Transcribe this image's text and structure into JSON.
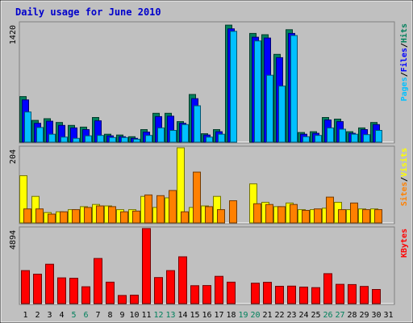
{
  "chart_data": {
    "type": "bar",
    "title": "Daily usage for June 2010",
    "colors": {
      "background": "#c0c0c0",
      "border": "#000000",
      "hits": "#00805c",
      "files": "#0000ff",
      "pages": "#00c0ff",
      "visits": "#ffff00",
      "sites": "#ff8000",
      "kbytes": "#ff0000",
      "weekday_label": "#000000",
      "weekend_label": "#00805c"
    },
    "categories": [
      "1",
      "2",
      "3",
      "4",
      "5",
      "6",
      "7",
      "8",
      "9",
      "10",
      "11",
      "12",
      "13",
      "14",
      "15",
      "16",
      "17",
      "18",
      "19",
      "20",
      "21",
      "22",
      "23",
      "24",
      "25",
      "26",
      "27",
      "28",
      "29",
      "30",
      "31"
    ],
    "weekend_days": [
      "5",
      "6",
      "12",
      "13",
      "19",
      "20",
      "26",
      "27"
    ],
    "panels": [
      {
        "id": "hits",
        "ymax_label": "1420",
        "ylim": [
          0,
          1420
        ],
        "legend": [
          {
            "label": "Pages",
            "color": "#00c0ff"
          },
          {
            "label": "/",
            "color": "#000000"
          },
          {
            "label": "Files",
            "color": "#0000ff"
          },
          {
            "label": "/",
            "color": "#000000"
          },
          {
            "label": "Hits",
            "color": "#00805c"
          }
        ],
        "series": [
          {
            "name": "Hits",
            "color": "#00805c",
            "values": [
              545,
              260,
              280,
              235,
              200,
              180,
              295,
              95,
              85,
              65,
              150,
              345,
              345,
              245,
              570,
              100,
              150,
              1400,
              0,
              1300,
              1285,
              1050,
              1345,
              115,
              125,
              295,
              275,
              125,
              170,
              235,
              0
            ]
          },
          {
            "name": "Files",
            "color": "#0000ff",
            "values": [
              505,
              225,
              250,
              200,
              170,
              150,
              255,
              75,
              65,
              45,
              120,
              305,
              310,
              225,
              520,
              85,
              125,
              1355,
              0,
              1255,
              1245,
              1010,
              1300,
              95,
              105,
              265,
              245,
              105,
              150,
              210,
              0
            ]
          },
          {
            "name": "Pages",
            "color": "#00c0ff",
            "values": [
              360,
              175,
              95,
              60,
              45,
              75,
              80,
              55,
              55,
              35,
              80,
              170,
              140,
              210,
              435,
              60,
              95,
              1325,
              0,
              1210,
              800,
              670,
              1275,
              65,
              80,
              170,
              155,
              95,
              90,
              140,
              0
            ]
          }
        ]
      },
      {
        "id": "visits",
        "ymax_label": "204",
        "ylim": [
          0,
          204
        ],
        "legend": [
          {
            "label": "Sites",
            "color": "#ff8000"
          },
          {
            "label": "/",
            "color": "#000000"
          },
          {
            "label": "Visits",
            "color": "#ffff00"
          }
        ],
        "series": [
          {
            "name": "Visits",
            "color": "#ffff00",
            "values": [
              128,
              72,
              28,
              30,
              36,
              44,
              50,
              46,
              36,
              36,
              72,
              42,
              68,
              204,
              42,
              46,
              72,
              0,
              0,
              106,
              56,
              44,
              54,
              36,
              36,
              40,
              56,
              36,
              38,
              38,
              0
            ]
          },
          {
            "name": "Sites",
            "color": "#ff8000",
            "values": [
              38,
              38,
              24,
              30,
              36,
              42,
              46,
              44,
              30,
              32,
              76,
              74,
              88,
              30,
              138,
              44,
              36,
              60,
              0,
              52,
              50,
              44,
              50,
              34,
              38,
              70,
              36,
              54,
              36,
              36,
              0
            ]
          }
        ]
      },
      {
        "id": "kbytes",
        "ymax_label": "4894",
        "ylim": [
          0,
          4894
        ],
        "legend": [
          {
            "label": "KBytes",
            "color": "#ff0000"
          }
        ],
        "series": [
          {
            "name": "KBytes",
            "color": "#ff0000",
            "values": [
              2150,
              1920,
              2570,
              1680,
              1650,
              1100,
              2940,
              1400,
              530,
              550,
              4894,
              1700,
              2150,
              3050,
              1170,
              1180,
              1780,
              1400,
              0,
              1330,
              1390,
              1130,
              1140,
              1080,
              1040,
              1950,
              1260,
              1240,
              1120,
              920,
              0
            ]
          }
        ]
      }
    ]
  }
}
